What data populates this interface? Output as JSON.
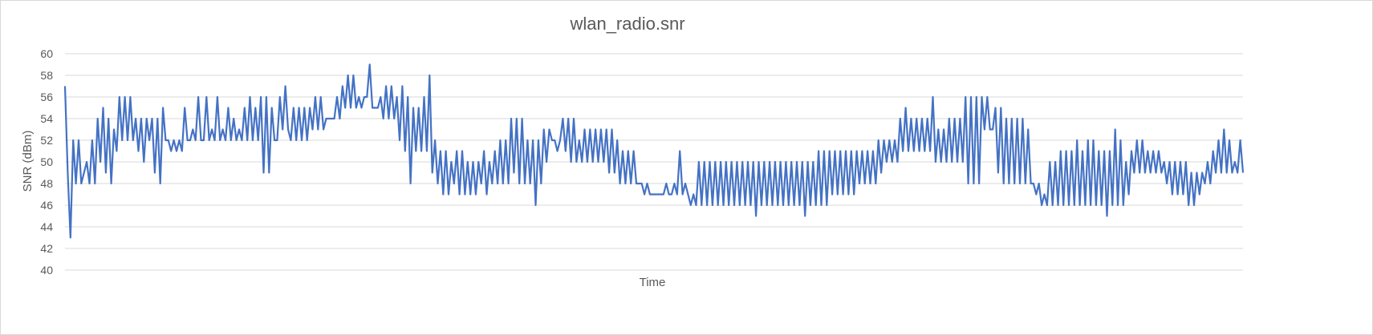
{
  "chart_data": {
    "type": "line",
    "title": "wlan_radio.snr",
    "xlabel": "Time",
    "ylabel": "SNR (dBm)",
    "ylim": [
      40,
      60
    ],
    "yticks": [
      40,
      42,
      44,
      46,
      48,
      50,
      52,
      54,
      56,
      58,
      60
    ],
    "grid": true,
    "legend": "none",
    "series": [
      {
        "color": "#4472c4",
        "values": [
          57,
          49,
          43,
          52,
          48,
          52,
          48,
          49,
          50,
          48,
          52,
          48,
          54,
          50,
          55,
          49,
          54,
          48,
          53,
          51,
          56,
          52,
          56,
          52,
          56,
          52,
          54,
          51,
          54,
          50,
          54,
          52,
          54,
          49,
          54,
          48,
          55,
          52,
          52,
          51,
          52,
          51,
          52,
          51,
          55,
          52,
          52,
          53,
          52,
          56,
          52,
          52,
          56,
          52,
          53,
          52,
          56,
          52,
          53,
          52,
          55,
          52,
          54,
          52,
          53,
          52,
          55,
          52,
          56,
          52,
          55,
          52,
          56,
          49,
          56,
          49,
          55,
          52,
          52,
          56,
          53,
          57,
          53,
          52,
          55,
          52,
          55,
          52,
          55,
          52,
          55,
          53,
          56,
          53,
          56,
          53,
          54,
          54,
          54,
          54,
          56,
          54,
          57,
          55,
          58,
          55,
          58,
          55,
          56,
          55,
          56,
          56,
          59,
          55,
          55,
          55,
          56,
          54,
          57,
          54,
          57,
          54,
          56,
          52,
          57,
          51,
          56,
          48,
          55,
          51,
          55,
          51,
          56,
          51,
          58,
          49,
          52,
          48,
          51,
          47,
          51,
          47,
          50,
          48,
          51,
          47,
          51,
          47,
          50,
          47,
          50,
          47,
          50,
          48,
          51,
          47,
          50,
          48,
          51,
          48,
          52,
          48,
          52,
          48,
          54,
          49,
          54,
          48,
          54,
          48,
          52,
          48,
          52,
          46,
          52,
          48,
          53,
          50,
          53,
          52,
          52,
          51,
          52,
          54,
          51,
          54,
          50,
          54,
          50,
          52,
          50,
          53,
          50,
          53,
          50,
          53,
          50,
          53,
          50,
          53,
          49,
          53,
          49,
          52,
          48,
          51,
          48,
          51,
          48,
          51,
          48,
          48,
          48,
          47,
          48,
          47,
          47,
          47,
          47,
          47,
          47,
          48,
          47,
          47,
          48,
          47,
          51,
          47,
          48,
          47,
          46,
          47,
          46,
          50,
          46,
          50,
          46,
          50,
          46,
          50,
          46,
          50,
          46,
          50,
          46,
          50,
          46,
          50,
          46,
          50,
          46,
          50,
          46,
          50,
          45,
          50,
          46,
          50,
          46,
          50,
          46,
          50,
          46,
          50,
          46,
          50,
          46,
          50,
          46,
          50,
          46,
          50,
          45,
          50,
          46,
          50,
          46,
          51,
          46,
          51,
          46,
          51,
          47,
          51,
          47,
          51,
          47,
          51,
          47,
          51,
          47,
          51,
          48,
          51,
          48,
          51,
          48,
          51,
          48,
          52,
          49,
          52,
          50,
          52,
          50,
          52,
          50,
          54,
          51,
          55,
          51,
          54,
          51,
          54,
          51,
          54,
          51,
          54,
          51,
          56,
          50,
          53,
          50,
          53,
          50,
          54,
          50,
          54,
          50,
          54,
          50,
          56,
          48,
          56,
          48,
          56,
          48,
          56,
          53,
          56,
          53,
          53,
          55,
          49,
          55,
          48,
          54,
          48,
          54,
          48,
          54,
          48,
          54,
          48,
          53,
          48,
          48,
          47,
          48,
          46,
          47,
          46,
          50,
          46,
          50,
          46,
          51,
          46,
          51,
          46,
          51,
          46,
          52,
          46,
          51,
          46,
          52,
          46,
          52,
          46,
          51,
          46,
          51,
          45,
          51,
          46,
          53,
          46,
          52,
          46,
          50,
          47,
          51,
          49,
          52,
          49,
          52,
          49,
          51,
          49,
          51,
          49,
          51,
          49,
          50,
          48,
          50,
          47,
          50,
          47,
          50,
          47,
          50,
          46,
          49,
          46,
          49,
          47,
          49,
          48,
          50,
          48,
          51,
          49,
          52,
          49,
          53,
          49,
          52,
          49,
          50,
          49,
          52,
          49
        ]
      }
    ]
  }
}
